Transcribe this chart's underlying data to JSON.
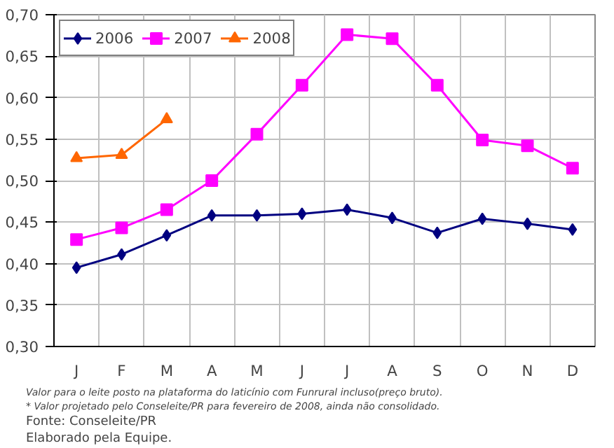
{
  "chart_data": {
    "type": "line",
    "categories": [
      "J",
      "F",
      "M",
      "A",
      "M",
      "J",
      "J",
      "A",
      "S",
      "O",
      "N",
      "D"
    ],
    "series": [
      {
        "name": "2006",
        "color": "#000080",
        "marker": "diamond",
        "values": [
          0.395,
          0.411,
          0.434,
          0.458,
          0.458,
          0.46,
          0.465,
          0.455,
          0.437,
          0.454,
          0.448,
          0.441
        ]
      },
      {
        "name": "2007",
        "color": "#ff00ff",
        "marker": "square",
        "values": [
          0.429,
          0.443,
          0.465,
          0.5,
          0.556,
          0.615,
          0.676,
          0.671,
          0.615,
          0.549,
          0.542,
          0.515
        ]
      },
      {
        "name": "2008",
        "color": "#ff6600",
        "marker": "triangle",
        "values": [
          0.527,
          0.531,
          0.574,
          null,
          null,
          null,
          null,
          null,
          null,
          null,
          null,
          null
        ]
      }
    ],
    "ylim": [
      0.3,
      0.7
    ],
    "yticks": [
      {
        "value": 0.3,
        "label": "0,30"
      },
      {
        "value": 0.35,
        "label": "0,35"
      },
      {
        "value": 0.4,
        "label": "0,40"
      },
      {
        "value": 0.45,
        "label": "0,45"
      },
      {
        "value": 0.5,
        "label": "0,50"
      },
      {
        "value": 0.55,
        "label": "0,55"
      },
      {
        "value": 0.6,
        "label": "0,60"
      },
      {
        "value": 0.65,
        "label": "0,65"
      },
      {
        "value": 0.7,
        "label": "0,70"
      }
    ],
    "grid": true,
    "legend": "top left",
    "line_style": "solid",
    "annotations": [
      "Valor para o leite posto na plataforma do laticínio com Funrural incluso(preço bruto).",
      "* Valor projetado pelo Conseleite/PR para fevereiro de 2008, ainda não consolidado.",
      "Fonte: Conseleite/PR",
      "Elaborado pela Equipe."
    ]
  }
}
